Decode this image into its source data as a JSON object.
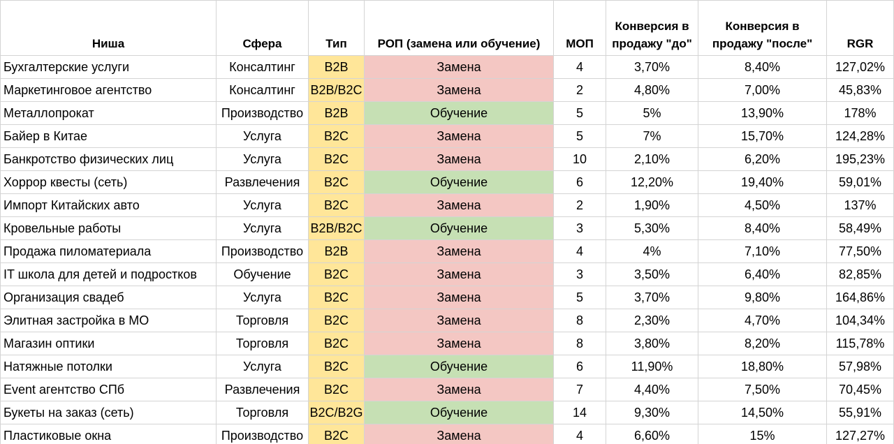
{
  "headers": {
    "niche": "Ниша",
    "sphere": "Сфера",
    "type": "Тип",
    "rop": "РОП (замена или обучение)",
    "mop": "МОП",
    "conv_before": "Конверсия в продажу \"до\"",
    "conv_after": "Конверсия в продажу \"после\"",
    "rgr": "RGR"
  },
  "rows": [
    {
      "niche": "Бухгалтерские услуги",
      "sphere": "Консалтинг",
      "type": "B2B",
      "rop": "Замена",
      "mop": "4",
      "conv_before": "3,70%",
      "conv_after": "8,40%",
      "rgr": "127,02%"
    },
    {
      "niche": "Маркетинговое агентство",
      "sphere": "Консалтинг",
      "type": "B2B/B2C",
      "rop": "Замена",
      "mop": "2",
      "conv_before": "4,80%",
      "conv_after": "7,00%",
      "rgr": "45,83%"
    },
    {
      "niche": "Металлопрокат",
      "sphere": "Производство",
      "type": "B2B",
      "rop": "Обучение",
      "mop": "5",
      "conv_before": "5%",
      "conv_after": "13,90%",
      "rgr": "178%"
    },
    {
      "niche": "Байер в Китае",
      "sphere": "Услуга",
      "type": "B2C",
      "rop": "Замена",
      "mop": "5",
      "conv_before": "7%",
      "conv_after": "15,70%",
      "rgr": "124,28%"
    },
    {
      "niche": "Банкротство физических лиц",
      "sphere": "Услуга",
      "type": "B2C",
      "rop": "Замена",
      "mop": "10",
      "conv_before": "2,10%",
      "conv_after": "6,20%",
      "rgr": "195,23%"
    },
    {
      "niche": "Хоррор квесты (сеть)",
      "sphere": "Развлечения",
      "type": "B2C",
      "rop": "Обучение",
      "mop": "6",
      "conv_before": "12,20%",
      "conv_after": "19,40%",
      "rgr": "59,01%"
    },
    {
      "niche": "Импорт Китайских авто",
      "sphere": "Услуга",
      "type": "B2C",
      "rop": "Замена",
      "mop": "2",
      "conv_before": "1,90%",
      "conv_after": "4,50%",
      "rgr": "137%"
    },
    {
      "niche": "Кровельные работы",
      "sphere": "Услуга",
      "type": "B2B/B2C",
      "rop": "Обучение",
      "mop": "3",
      "conv_before": "5,30%",
      "conv_after": "8,40%",
      "rgr": "58,49%"
    },
    {
      "niche": "Продажа пиломатериала",
      "sphere": "Производство",
      "type": "B2B",
      "rop": "Замена",
      "mop": "4",
      "conv_before": "4%",
      "conv_after": "7,10%",
      "rgr": "77,50%"
    },
    {
      "niche": "IT школа для детей и подростков",
      "sphere": "Обучение",
      "type": "B2C",
      "rop": "Замена",
      "mop": "3",
      "conv_before": "3,50%",
      "conv_after": "6,40%",
      "rgr": "82,85%"
    },
    {
      "niche": "Организация свадеб",
      "sphere": "Услуга",
      "type": "B2C",
      "rop": "Замена",
      "mop": "5",
      "conv_before": "3,70%",
      "conv_after": "9,80%",
      "rgr": "164,86%"
    },
    {
      "niche": "Элитная застройка в МО",
      "sphere": "Торговля",
      "type": "B2C",
      "rop": "Замена",
      "mop": "8",
      "conv_before": "2,30%",
      "conv_after": "4,70%",
      "rgr": "104,34%"
    },
    {
      "niche": "Магазин оптики",
      "sphere": "Торговля",
      "type": "B2C",
      "rop": "Замена",
      "mop": "8",
      "conv_before": "3,80%",
      "conv_after": "8,20%",
      "rgr": "115,78%"
    },
    {
      "niche": "Натяжные потолки",
      "sphere": "Услуга",
      "type": "B2C",
      "rop": "Обучение",
      "mop": "6",
      "conv_before": "11,90%",
      "conv_after": "18,80%",
      "rgr": "57,98%"
    },
    {
      "niche": "Event агентство СПб",
      "sphere": "Развлечения",
      "type": "B2C",
      "rop": "Замена",
      "mop": "7",
      "conv_before": "4,40%",
      "conv_after": "7,50%",
      "rgr": "70,45%"
    },
    {
      "niche": "Букеты на заказ (сеть)",
      "sphere": "Торговля",
      "type": "B2C/B2G",
      "rop": "Обучение",
      "mop": "14",
      "conv_before": "9,30%",
      "conv_after": "14,50%",
      "rgr": "55,91%"
    },
    {
      "niche": "Пластиковые окна",
      "sphere": "Производство",
      "type": "B2C",
      "rop": "Замена",
      "mop": "4",
      "conv_before": "6,60%",
      "conv_after": "15%",
      "rgr": "127,27%"
    }
  ],
  "colors": {
    "type_fill": "#ffe699",
    "zamena_fill": "#f4c7c3",
    "obuchenie_fill": "#c6e0b4",
    "grid": "#d4d4d4"
  }
}
